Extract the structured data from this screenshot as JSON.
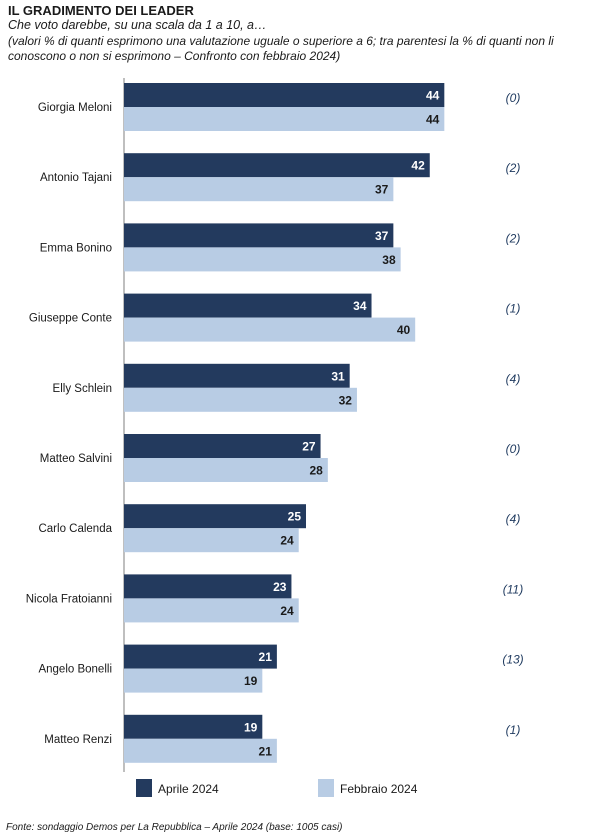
{
  "chart_data": {
    "type": "bar",
    "orientation": "horizontal",
    "title": "IL GRADIMENTO DEI LEADER",
    "subtitle": "Che voto darebbe, su una scala da 1 a 10, a…",
    "note": "(valori % di quanti esprimono una valutazione uguale o superiore a 6; tra parentesi la % di quanti non li conoscono o non si esprimono – Confronto con febbraio 2024)",
    "categories": [
      "Giorgia Meloni",
      "Antonio Tajani",
      "Emma Bonino",
      "Giuseppe Conte",
      "Elly Schlein",
      "Matteo Salvini",
      "Carlo Calenda",
      "Nicola Fratoianni",
      "Angelo Bonelli",
      "Matteo Renzi"
    ],
    "series": [
      {
        "name": "Aprile 2024",
        "color": "#233A5E",
        "values": [
          44,
          42,
          37,
          34,
          31,
          27,
          25,
          23,
          21,
          19
        ]
      },
      {
        "name": "Febbraio 2024",
        "color": "#B8CCE4",
        "values": [
          44,
          37,
          38,
          40,
          32,
          28,
          24,
          24,
          19,
          21
        ]
      }
    ],
    "annotations": [
      "(0)",
      "(2)",
      "(2)",
      "(1)",
      "(4)",
      "(0)",
      "(4)",
      "(11)",
      "(13)",
      "(1)"
    ],
    "annotation_color": "#1F3A5F",
    "legend_position": "bottom",
    "grid": false,
    "source": "Fonte: sondaggio Demos per La Repubblica – Aprile 2024 (base: 1005 casi)"
  }
}
